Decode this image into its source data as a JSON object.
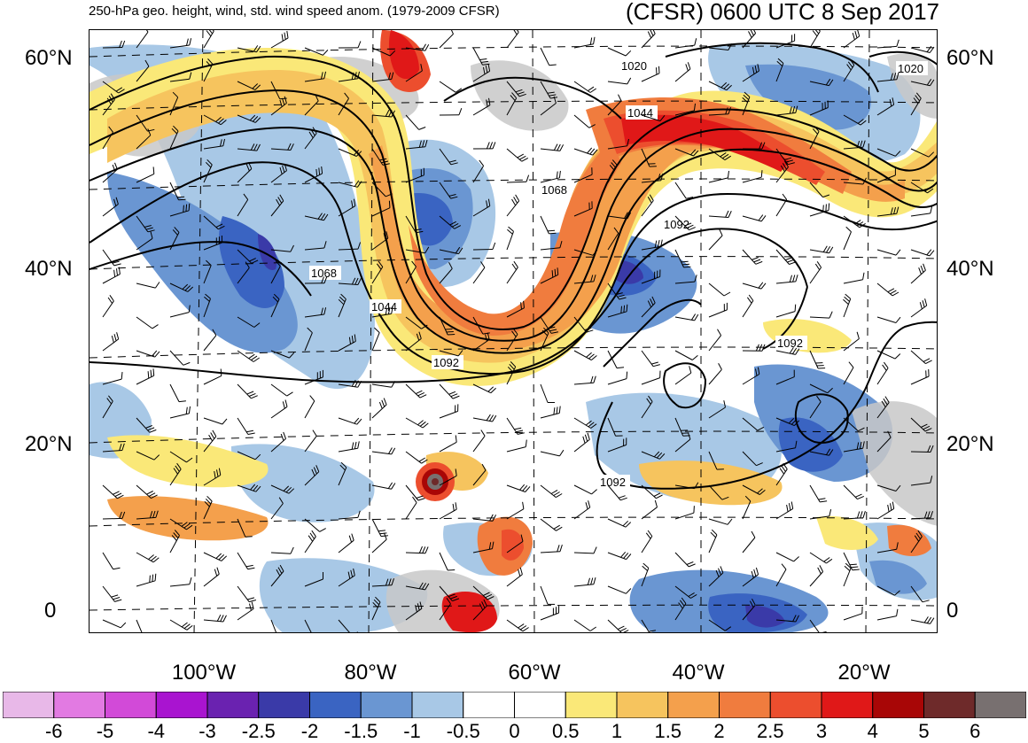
{
  "header": {
    "left_title": "250-hPa geo. height, wind, std. wind speed anom. (1979-2009 CFSR)",
    "right_title": "(CFSR) 0600 UTC 8 Sep 2017"
  },
  "map": {
    "lat_labels": [
      "60°N",
      "40°N",
      "20°N",
      "0"
    ],
    "lon_labels": [
      "100°W",
      "80°W",
      "60°W",
      "40°W",
      "20°W"
    ],
    "contour_labels": [
      "1020",
      "1044",
      "1068",
      "1092",
      "1068",
      "1044",
      "1092",
      "1092",
      "1092",
      "1020"
    ],
    "features": [
      "hurricane-vortex-caribbean",
      "jet-streak-north-atlantic",
      "upper-trough-eastern-us"
    ]
  },
  "colorbar": {
    "colors": [
      "#e8b8e8",
      "#e27ae2",
      "#d24ad8",
      "#a914d0",
      "#6a22b0",
      "#3a3aa8",
      "#3a64c2",
      "#6a96d2",
      "#a8c8e6",
      "#ffffff",
      "#ffffff",
      "#fae878",
      "#f6c45e",
      "#f4a04c",
      "#f07c3e",
      "#ec4e2e",
      "#e01818",
      "#a80606",
      "#6e2a2a",
      "#787070"
    ],
    "labels": [
      "-6",
      "-5",
      "-4",
      "-3",
      "-2.5",
      "-2",
      "-1.5",
      "-1",
      "-0.5",
      "0",
      "0.5",
      "1",
      "1.5",
      "2",
      "2.5",
      "3",
      "4",
      "5",
      "6"
    ]
  }
}
